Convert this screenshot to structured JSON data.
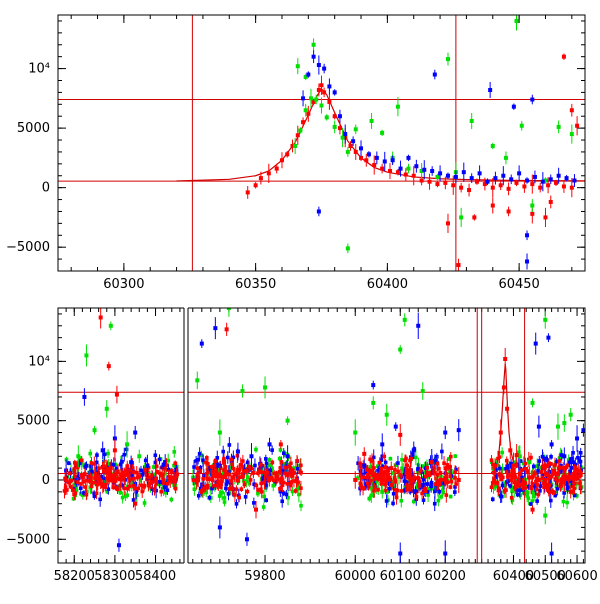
{
  "chart_data": [
    {
      "type": "scatter",
      "title": "",
      "xlabel": "",
      "ylabel": "",
      "xlim": [
        60275,
        60475
      ],
      "ylim": [
        -7000,
        14500
      ],
      "x_ticks": [
        {
          "value": 60300,
          "label": "60300"
        },
        {
          "value": 60350,
          "label": "60350"
        },
        {
          "value": 60400,
          "label": "60400"
        },
        {
          "value": 60450,
          "label": "60450"
        }
      ],
      "y_ticks": [
        {
          "value": -5000,
          "label": "−5000"
        },
        {
          "value": 0,
          "label": "0"
        },
        {
          "value": 5000,
          "label": "5000"
        },
        {
          "value": 10000,
          "label": "10⁴"
        }
      ],
      "reference_lines": {
        "vertical": [
          60326,
          60426
        ],
        "horizontal": [
          550,
          7400
        ],
        "color": "#d00000"
      },
      "model_curve": {
        "color": "#d00000",
        "x": [
          60320,
          60340,
          60350,
          60355,
          60360,
          60365,
          60370,
          60373,
          60375,
          60377,
          60380,
          60385,
          60390,
          60395,
          60400,
          60410,
          60420,
          60430,
          60450,
          60475
        ],
        "y": [
          560,
          700,
          1000,
          1400,
          2300,
          3800,
          6100,
          7600,
          8300,
          7800,
          6300,
          3900,
          2500,
          1700,
          1300,
          900,
          750,
          680,
          600,
          570
        ]
      },
      "series": [
        {
          "color": "#ff0000",
          "x": [
            60347,
            60350,
            60352,
            60355,
            60358,
            60360,
            60362,
            60364,
            60366,
            60368,
            60370,
            60372,
            60374,
            60375,
            60376,
            60378,
            60380,
            60382,
            60384,
            60386,
            60388,
            60390,
            60392,
            60395,
            60398,
            60401,
            60404,
            60407,
            60410,
            60413,
            60416,
            60419,
            60422,
            60425,
            60428,
            60431,
            60434,
            60437,
            60440,
            60443,
            60446,
            60449,
            60452,
            60455,
            60458,
            60461,
            60464,
            60467,
            60470,
            60423,
            60427,
            60433,
            60440,
            60446,
            60455,
            60462,
            60467,
            60470,
            60472,
            60460
          ],
          "y": [
            -400,
            200,
            800,
            1200,
            1600,
            2300,
            2800,
            3500,
            4400,
            5500,
            6200,
            7200,
            8200,
            8600,
            8000,
            7200,
            6000,
            5000,
            4200,
            3500,
            3000,
            2500,
            2300,
            1900,
            1600,
            1400,
            1300,
            1100,
            1000,
            600,
            500,
            300,
            400,
            200,
            0,
            -200,
            500,
            300,
            0,
            200,
            -100,
            400,
            100,
            300,
            0,
            200,
            400,
            100,
            0,
            -3000,
            -6500,
            -2500,
            -1500,
            -2000,
            -2200,
            -1200,
            11000,
            6500,
            5200,
            -2500
          ]
        },
        {
          "color": "#00e000",
          "x": [
            60365,
            60367,
            60369,
            60371,
            60373,
            60375,
            60377,
            60380,
            60383,
            60385,
            60366,
            60369,
            60372,
            60385,
            60388,
            60394,
            60398,
            60402,
            60404,
            60408,
            60413,
            60419,
            60423,
            60426,
            60428,
            60432,
            60440,
            60445,
            60449,
            60451,
            60455,
            60460,
            60465,
            60470
          ],
          "y": [
            3500,
            4800,
            6500,
            7500,
            7400,
            6900,
            5900,
            5100,
            4200,
            3000,
            10200,
            9300,
            12000,
            -5100,
            4900,
            5600,
            4600,
            2500,
            6800,
            1600,
            1400,
            900,
            10800,
            1300,
            -2500,
            5600,
            3500,
            2500,
            14000,
            5200,
            -1500,
            600,
            5100,
            4500
          ]
        },
        {
          "color": "#0000ff",
          "x": [
            60368,
            60370,
            60372,
            60374,
            60376,
            60378,
            60380,
            60382,
            60384,
            60387,
            60390,
            60393,
            60396,
            60399,
            60402,
            60405,
            60408,
            60411,
            60414,
            60417,
            60420,
            60423,
            60426,
            60429,
            60432,
            60435,
            60438,
            60441,
            60444,
            60447,
            60450,
            60453,
            60456,
            60459,
            60462,
            60465,
            60468,
            60471,
            60374,
            60418,
            60439,
            60448,
            60453,
            60453,
            60455
          ],
          "y": [
            7500,
            9500,
            11000,
            10300,
            10000,
            8500,
            8000,
            6000,
            4500,
            3900,
            3300,
            2800,
            2500,
            2200,
            2300,
            1600,
            2500,
            1800,
            1500,
            1400,
            1200,
            1000,
            900,
            1300,
            800,
            1200,
            500,
            800,
            1000,
            700,
            1200,
            600,
            900,
            500,
            700,
            1000,
            800,
            600,
            -2000,
            9500,
            8200,
            6800,
            -6200,
            -4000,
            7400
          ]
        }
      ]
    },
    {
      "type": "scatter",
      "title": "",
      "xlabel": "",
      "ylabel": "",
      "ylim": [
        -7000,
        14500
      ],
      "broken_x_axis": true,
      "segments": [
        {
          "xlim": [
            58160,
            58475
          ],
          "ticks": [
            {
              "value": 58200,
              "label": "58200"
            },
            {
              "value": 58300,
              "label": "58300"
            },
            {
              "value": 58400,
              "label": "58400"
            }
          ]
        },
        {
          "xlim": [
            59625,
            59935
          ],
          "ticks": [
            {
              "value": 59800,
              "label": "59800"
            }
          ]
        },
        {
          "xlim": [
            59935,
            60235
          ],
          "ticks": [
            {
              "value": 60000,
              "label": "60000"
            },
            {
              "value": 60100,
              "label": "60100"
            },
            {
              "value": 60200,
              "label": "60200"
            }
          ]
        },
        {
          "xlim": [
            60235,
            60625
          ],
          "ticks": [
            {
              "value": 60400,
              "label": "60400"
            },
            {
              "value": 60500,
              "label": "60500"
            },
            {
              "value": 60600,
              "label": "60600"
            }
          ]
        }
      ],
      "y_ticks": [
        {
          "value": -5000,
          "label": "−5000"
        },
        {
          "value": 0,
          "label": "0"
        },
        {
          "value": 5000,
          "label": "5000"
        },
        {
          "value": 10000,
          "label": "10⁴"
        }
      ],
      "reference_lines": {
        "vertical": [
          60286,
          60300,
          60435
        ],
        "horizontal": [
          550,
          7400
        ],
        "color": "#d00000"
      },
      "model_curve": {
        "color": "#d00000",
        "x": [
          60330,
          60340,
          60350,
          60355,
          60360,
          60365,
          60370,
          60374,
          60376,
          60378,
          60382,
          60386,
          60392,
          60400,
          60420,
          60450
        ],
        "y": [
          600,
          900,
          1600,
          2500,
          4000,
          6000,
          8300,
          9800,
          9300,
          8000,
          5800,
          4000,
          2400,
          1500,
          900,
          650
        ]
      },
      "series": [
        {
          "color": "#0000ff",
          "x": [
            58180,
            58230,
            58270,
            58300,
            58340,
            58380,
            58420,
            58225,
            58310,
            58350,
            59690,
            59700,
            59740,
            59770,
            59810,
            59850,
            59660,
            59700,
            59760,
            60020,
            60060,
            60090,
            60130,
            60170,
            60200,
            60230,
            60040,
            60100,
            60140,
            60200,
            60480,
            60520,
            60560,
            60600,
            60620,
            60470,
            60510,
            60520
          ],
          "y": [
            800,
            1200,
            2500,
            3500,
            1500,
            1200,
            1300,
            7000,
            -5500,
            4000,
            12800,
            1200,
            2400,
            2000,
            3000,
            2000,
            11500,
            -4000,
            -5000,
            1200,
            3000,
            4500,
            2500,
            1500,
            4000,
            4200,
            8000,
            -6200,
            13000,
            -6200,
            4500,
            3000,
            2000,
            3500,
            4200,
            11500,
            12000,
            -6200
          ]
        },
        {
          "color": "#00e000",
          "x": [
            58210,
            58250,
            58280,
            58330,
            58360,
            58230,
            58290,
            59650,
            59700,
            59750,
            59800,
            59850,
            59720,
            60000,
            60040,
            60070,
            60100,
            60150,
            60060,
            60110,
            60420,
            60460,
            60500,
            60540,
            60580,
            60500,
            60450,
            60560
          ],
          "y": [
            2000,
            4200,
            6000,
            3000,
            2000,
            10500,
            13000,
            8400,
            4000,
            7500,
            7800,
            5000,
            14500,
            4000,
            6500,
            5500,
            11000,
            7500,
            -1000,
            13500,
            2000,
            6500,
            13500,
            4500,
            5500,
            -3000,
            1500,
            4800
          ]
        },
        {
          "color": "#ff0000",
          "x": [
            58180,
            58220,
            58260,
            58280,
            58290,
            58300,
            58320,
            58360,
            58400,
            58440,
            58265,
            58285,
            58305,
            58350,
            59650,
            59700,
            59750,
            59800,
            59850,
            59715,
            59780,
            59835,
            60000,
            60040,
            60080,
            60120,
            60160,
            60200,
            60230,
            60020,
            60100,
            60170,
            60340,
            60360,
            60370,
            60374,
            60380,
            60390,
            60400,
            60420,
            60450,
            60480,
            60520,
            60560,
            60600,
            60410,
            60460,
            60540,
            60580
          ],
          "y": [
            0,
            200,
            300,
            600,
            1000,
            2500,
            600,
            300,
            0,
            200,
            13700,
            9600,
            7200,
            -2000,
            0,
            300,
            500,
            600,
            400,
            12700,
            -2500,
            3000,
            0,
            400,
            1000,
            300,
            500,
            200,
            0,
            2200,
            3800,
            1500,
            600,
            4000,
            7800,
            10200,
            6000,
            2500,
            1200,
            500,
            200,
            0,
            300,
            100,
            200,
            2100,
            -2500,
            500,
            -1000
          ]
        }
      ]
    }
  ]
}
